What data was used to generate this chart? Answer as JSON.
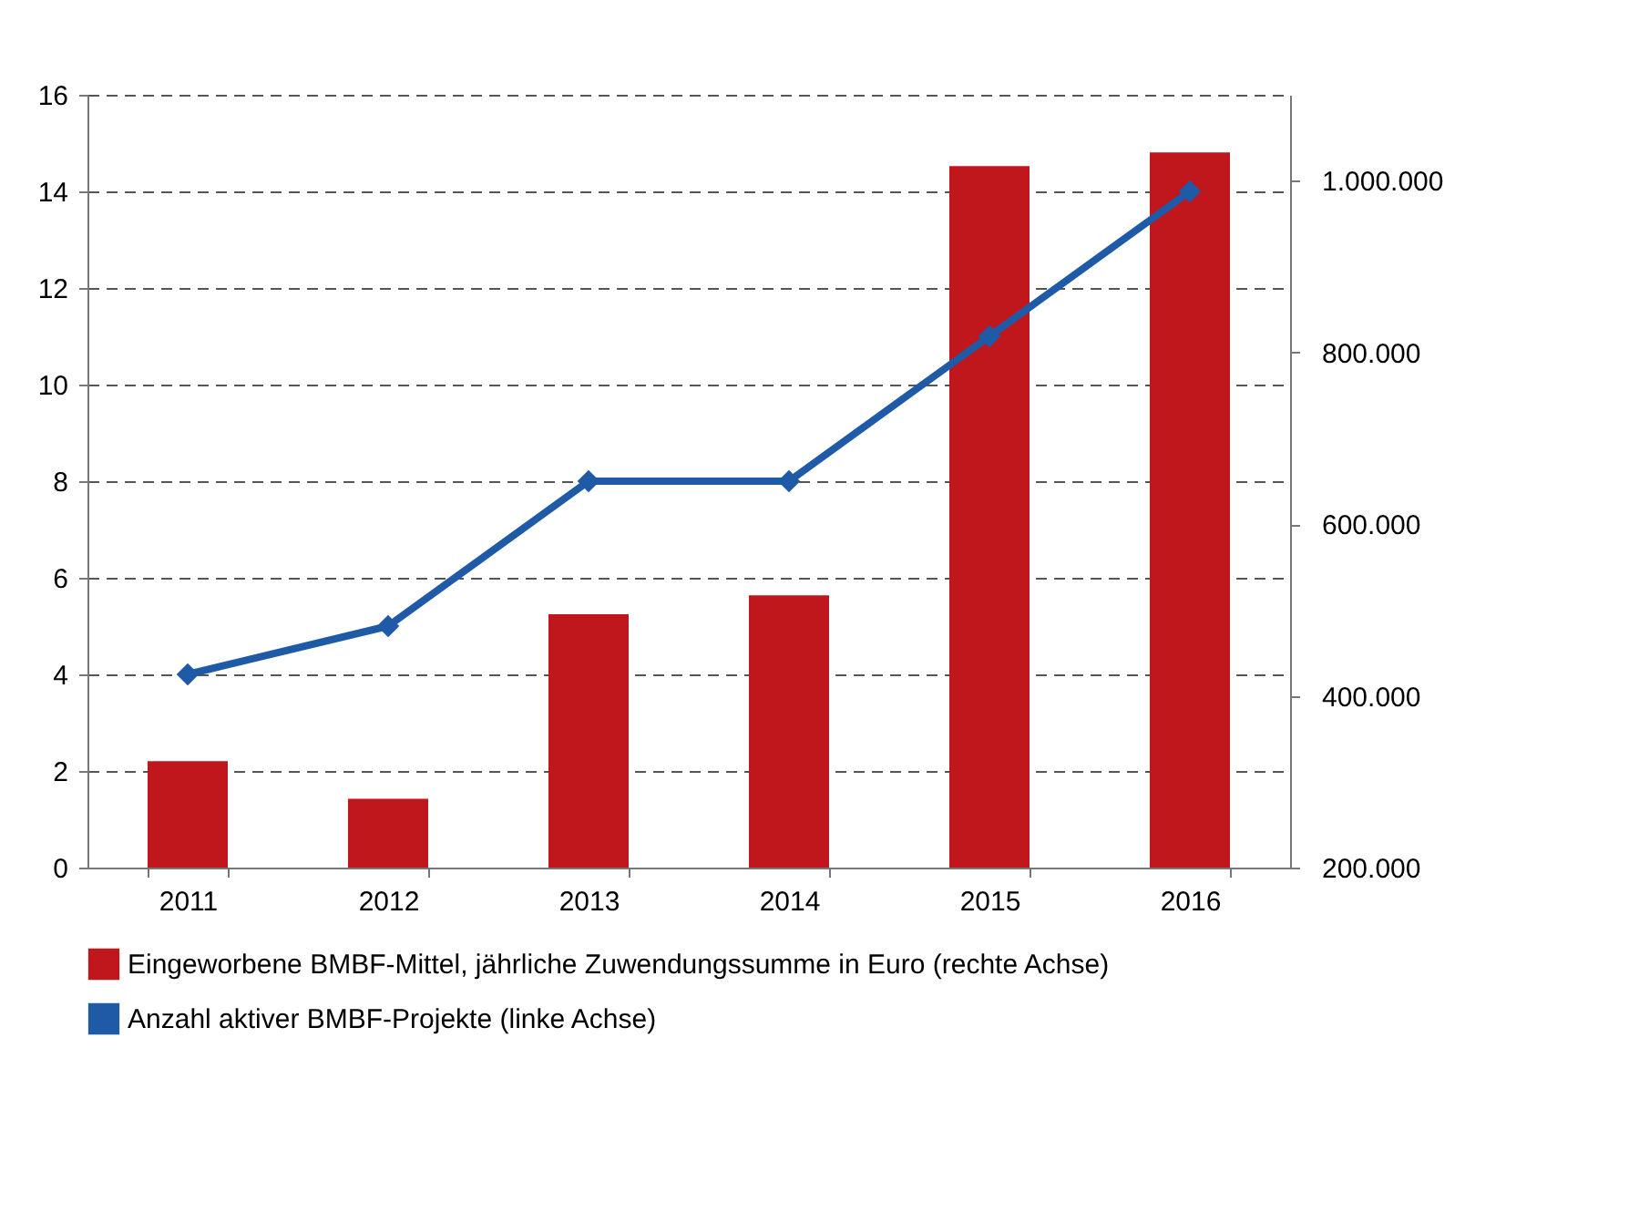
{
  "chart_data": {
    "type": "bar",
    "categories": [
      "2011",
      "2012",
      "2013",
      "2014",
      "2015",
      "2016"
    ],
    "series": [
      {
        "axis": "y2",
        "name": "Eingeworbene BMBF-Mittel, jährliche Zuwendungssumme in Euro (rechte Achse)",
        "color": "#c0171c",
        "values": [
          324000,
          280000,
          495000,
          517000,
          1017000,
          1033000
        ]
      },
      {
        "type": "line",
        "name": "Anzahl aktiver BMBF-Projekte (linke Achse)",
        "color": "#1f5aa6",
        "marker": "diamond",
        "values": [
          4,
          5,
          8,
          8,
          11,
          14
        ]
      }
    ],
    "ylim": [
      0,
      16
    ],
    "yticks": [
      0,
      2,
      4,
      6,
      8,
      10,
      12,
      14,
      16
    ],
    "y2lim": [
      200000,
      1100000
    ],
    "y2ticks": [
      {
        "value": 200000,
        "label": "200.000"
      },
      {
        "value": 400000,
        "label": "400.000"
      },
      {
        "value": 600000,
        "label": "600.000"
      },
      {
        "value": 800000,
        "label": "800.000"
      },
      {
        "value": 1000000,
        "label": "1.000.000"
      }
    ],
    "grid": "y",
    "legend": "bottom left"
  }
}
